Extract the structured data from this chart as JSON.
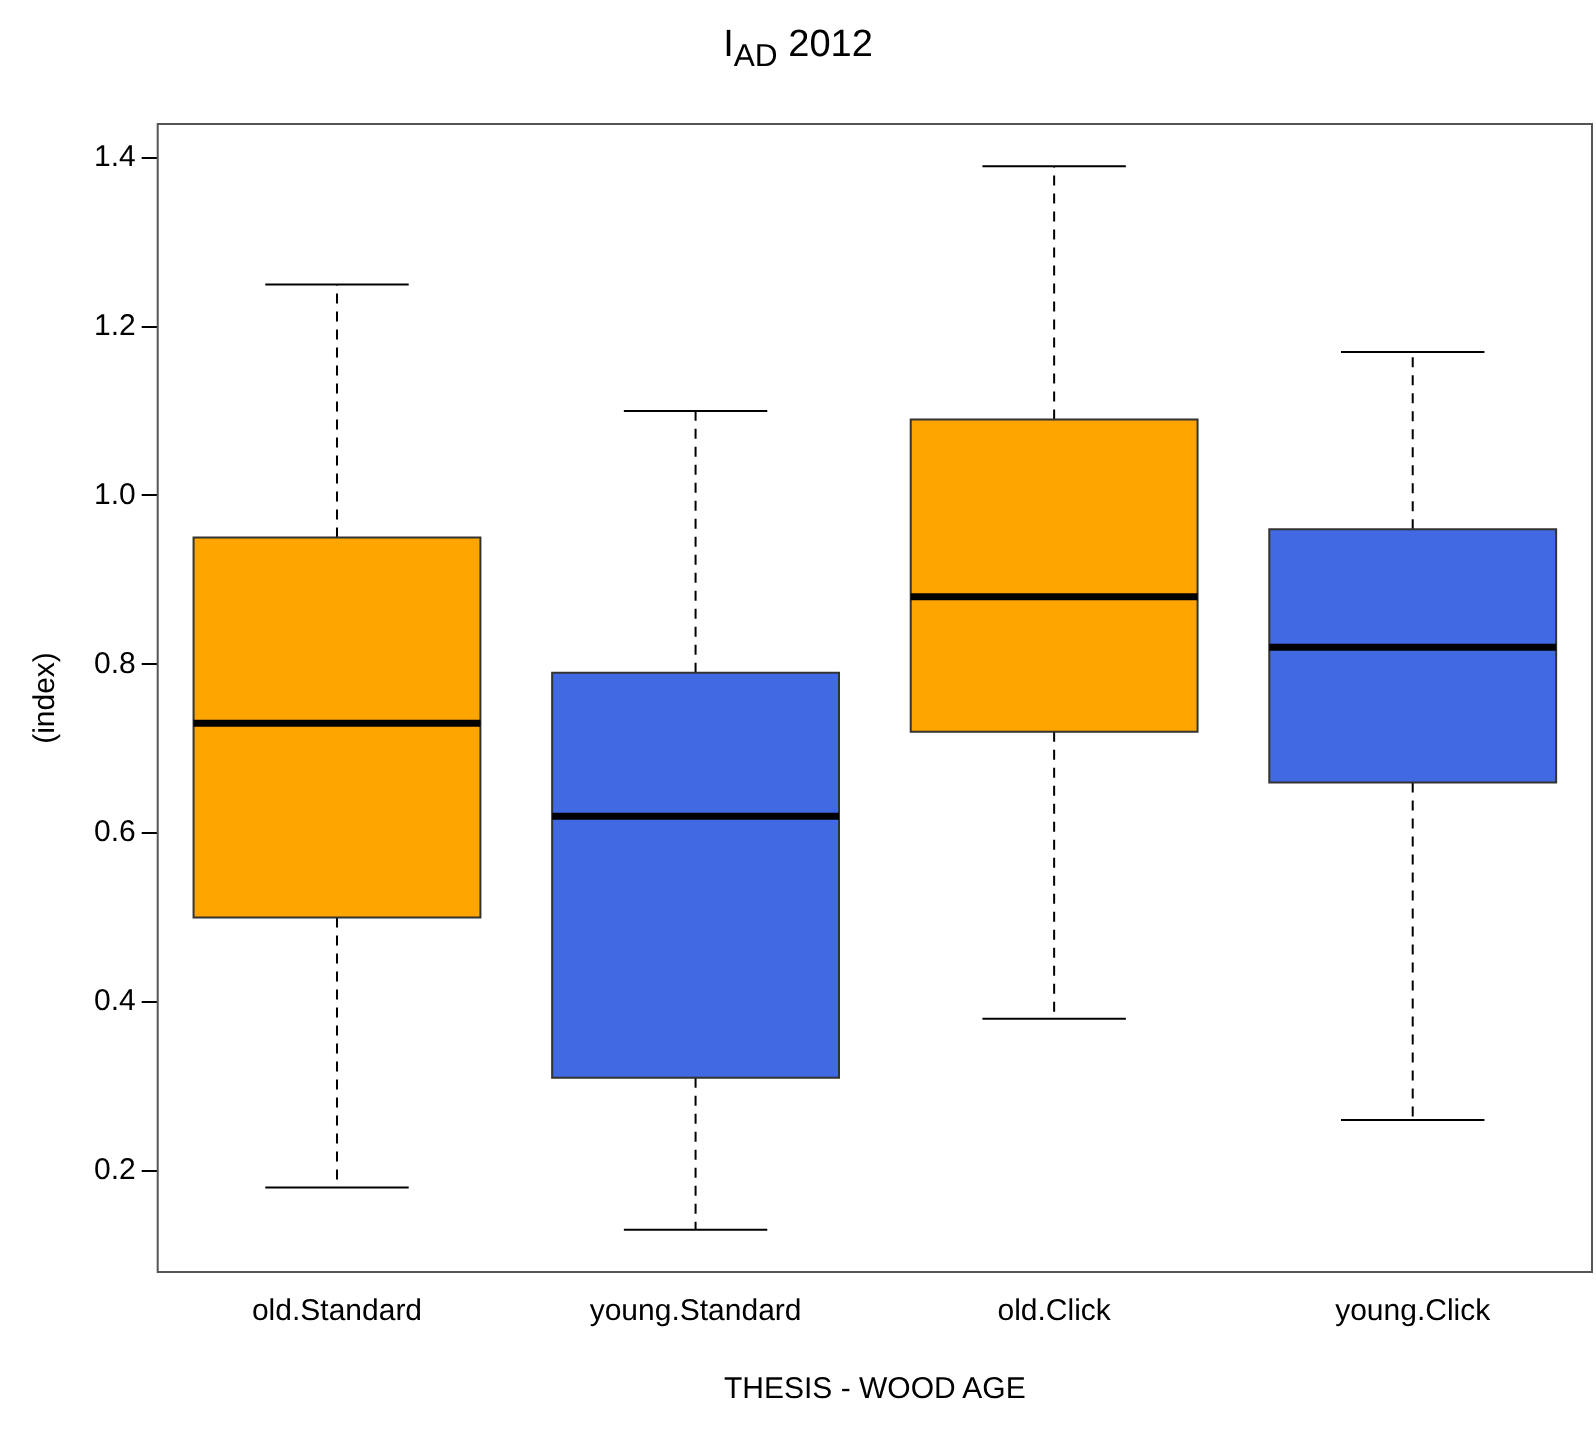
{
  "chart_data": {
    "type": "box",
    "title": "I$_{AD}$ 2012",
    "xlabel": "THESIS - WOOD AGE",
    "ylabel": "(index)",
    "categories": [
      "old.Standard",
      "young.Standard",
      "old.Click",
      "young.Click"
    ],
    "colors": [
      "#ffa500",
      "#4169e1",
      "#ffa500",
      "#4169e1"
    ],
    "boxes": [
      {
        "low": 0.18,
        "q1": 0.5,
        "median": 0.73,
        "q3": 0.95,
        "high": 1.25
      },
      {
        "low": 0.13,
        "q1": 0.31,
        "median": 0.62,
        "q3": 0.79,
        "high": 1.1
      },
      {
        "low": 0.38,
        "q1": 0.72,
        "median": 0.88,
        "q3": 1.09,
        "high": 1.39
      },
      {
        "low": 0.26,
        "q1": 0.66,
        "median": 0.82,
        "q3": 0.96,
        "high": 1.17
      }
    ],
    "ylim": [
      0.08,
      1.44
    ],
    "yticks": [
      0.2,
      0.4,
      0.6,
      0.8,
      {
        "value": 1,
        "label": "1.0"
      },
      1.2,
      1.4
    ],
    "grid": false,
    "legend": false
  }
}
